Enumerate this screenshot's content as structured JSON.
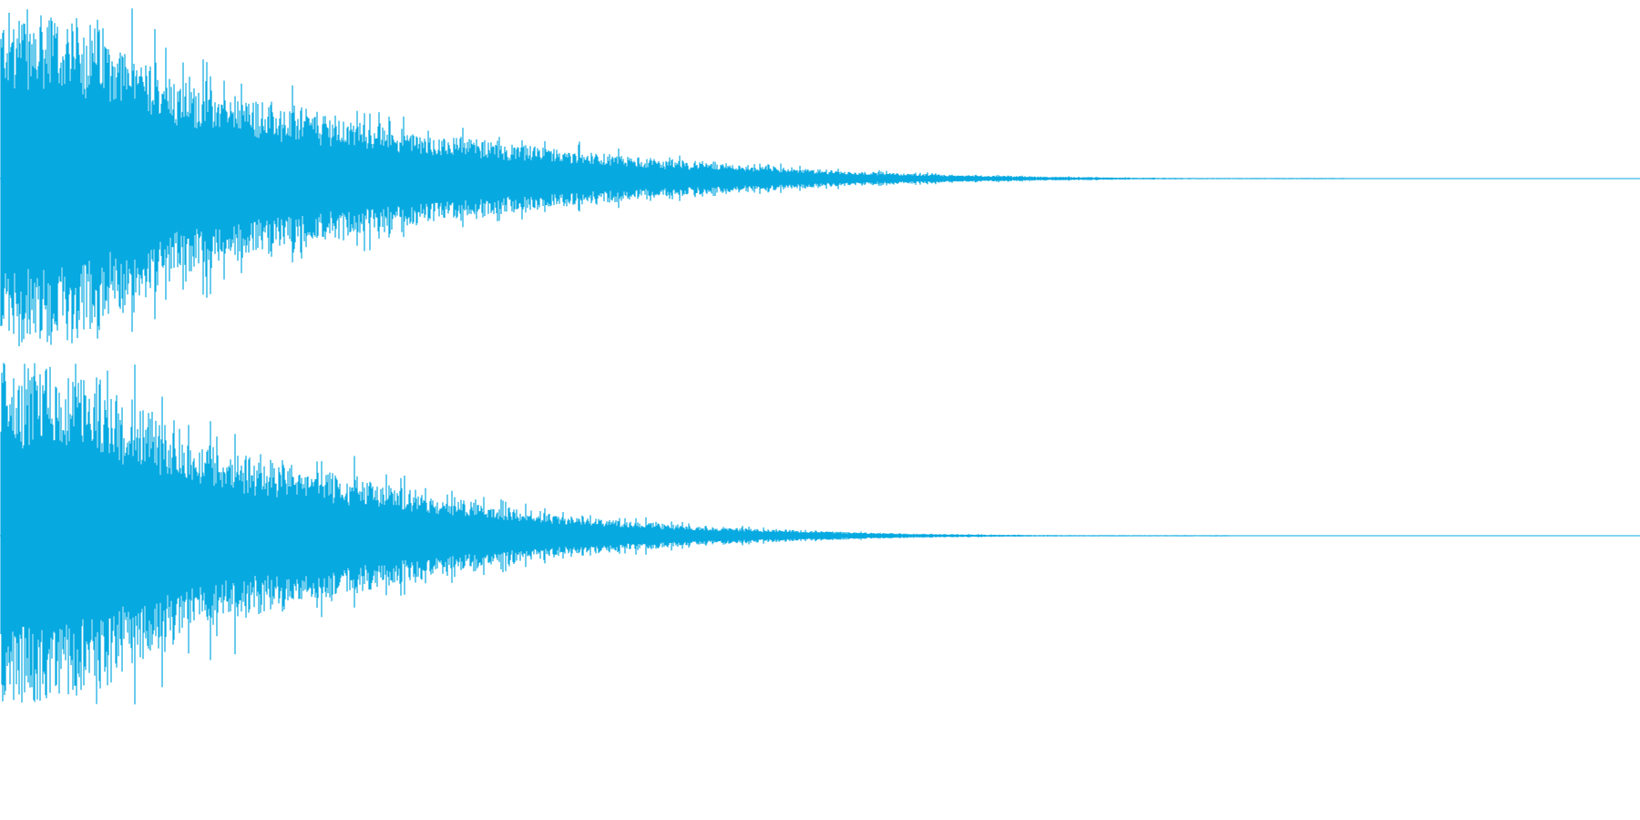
{
  "waveform": {
    "color": "#07a9e1",
    "background": "#ffffff",
    "channels": [
      {
        "name": "",
        "envelope": [
          1.0,
          0.98,
          0.92,
          0.72,
          0.58,
          0.48,
          0.42,
          0.36,
          0.3,
          0.26,
          0.22,
          0.18,
          0.15,
          0.12,
          0.1,
          0.08,
          0.06,
          0.045,
          0.035,
          0.025,
          0.018,
          0.012,
          0.008,
          0.005,
          0.003,
          0.002,
          0.001,
          0.0
        ],
        "decay_end_fraction": 0.82
      },
      {
        "name": "",
        "envelope": [
          1.0,
          0.99,
          0.95,
          0.8,
          0.62,
          0.52,
          0.45,
          0.4,
          0.34,
          0.28,
          0.22,
          0.18,
          0.14,
          0.11,
          0.085,
          0.065,
          0.05,
          0.038,
          0.028,
          0.02,
          0.014,
          0.009,
          0.006,
          0.004,
          0.002,
          0.001,
          0.0,
          0.0
        ],
        "decay_end_fraction": 0.75
      }
    ]
  }
}
